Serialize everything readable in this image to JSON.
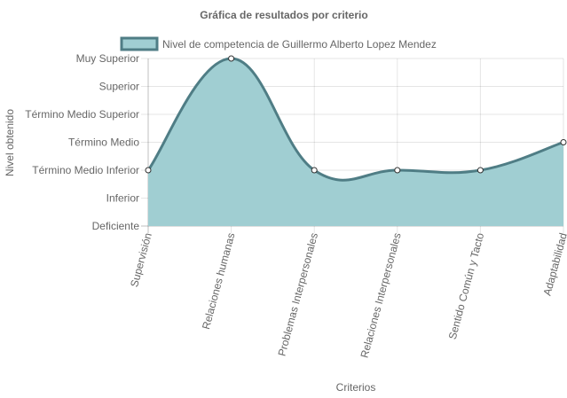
{
  "chart_data": {
    "type": "area",
    "title": "Gráfica de resultados por criterio",
    "xlabel": "Criterios",
    "ylabel": "Nivel obtenido",
    "categories": [
      "Supervisión",
      "Relaciones humanas",
      "Problemas Interpersonales",
      "Relaciones Interpersonales",
      "Sentido Común y Tacto",
      "Adaptabilidad"
    ],
    "y_levels": [
      "Deficiente",
      "Inferior",
      "Término Medio Inferior",
      "Término Medio",
      "Término Medio Superior",
      "Superior",
      "Muy Superior"
    ],
    "ylim": [
      0,
      6
    ],
    "series": [
      {
        "name": "Nivel de competencia de Guillermo Alberto Lopez Mendez",
        "values": [
          2,
          6,
          2,
          2,
          2,
          3
        ],
        "fill": "#a0ced2",
        "stroke": "#4f7d85"
      }
    ],
    "grid": true,
    "legend": "top-center",
    "x_tick_rotation": "vertical"
  }
}
